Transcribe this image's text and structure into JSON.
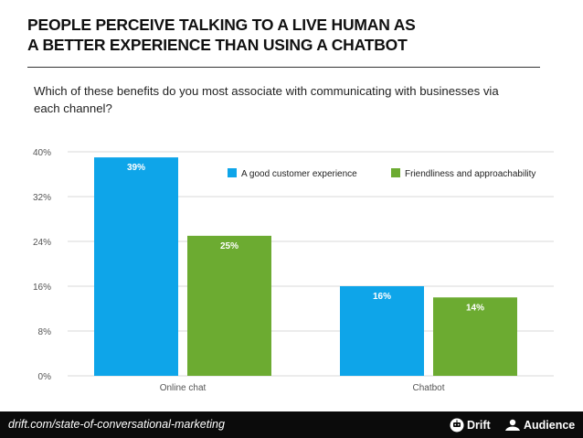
{
  "title_lines": [
    "PEOPLE PERCEIVE TALKING TO A LIVE HUMAN AS",
    "A BETTER EXPERIENCE THAN USING A CHATBOT"
  ],
  "question": "Which of these benefits do you most associate with communicating with businesses via each channel?",
  "colors": {
    "series1": "#0ea5e9",
    "series2": "#6cab31",
    "grid": "#d9d9d9",
    "axis_text": "#555555"
  },
  "chart_data": {
    "type": "bar",
    "categories": [
      "Online chat",
      "Chatbot"
    ],
    "series": [
      {
        "name": "A good customer experience",
        "values": [
          39,
          16
        ],
        "labels": [
          "39%",
          "16%"
        ]
      },
      {
        "name": "Friendliness and approachability",
        "values": [
          25,
          14
        ],
        "labels": [
          "25%",
          "14%"
        ]
      }
    ],
    "yticks": [
      "0%",
      "8%",
      "16%",
      "24%",
      "32%",
      "40%"
    ],
    "ylim": [
      0,
      40
    ],
    "grid": true,
    "legend_position": "top-right"
  },
  "footer": {
    "link": "drift.com/state-of-conversational-marketing",
    "logo_drift": "Drift",
    "logo_audience": "Audience"
  }
}
